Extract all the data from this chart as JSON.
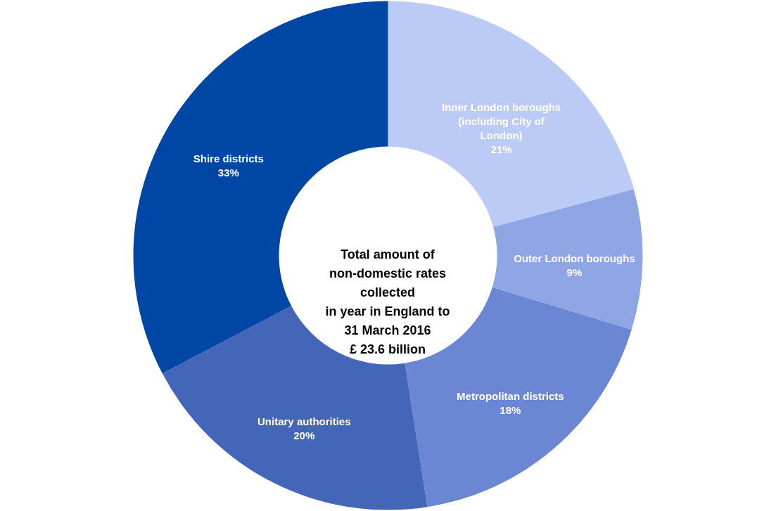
{
  "chart_data": {
    "type": "donut",
    "categories": [
      "Inner London boroughs (including City of London)",
      "Outer London boroughs",
      "Metropolitan districts",
      "Unitary authorities",
      "Shire districts"
    ],
    "values": [
      21,
      9,
      18,
      20,
      33
    ],
    "value_labels": [
      "21%",
      "9%",
      "18%",
      "20%",
      "33%"
    ],
    "colors": [
      "#bccbf5",
      "#8ea6e4",
      "#6b86d2",
      "#4466b8",
      "#0047a5"
    ],
    "annotations": [
      "Total amount of",
      "non-domestic rates",
      "collected",
      "in year in England to",
      "31 March 2016",
      "£ 23.6 billion"
    ],
    "legend": false
  }
}
